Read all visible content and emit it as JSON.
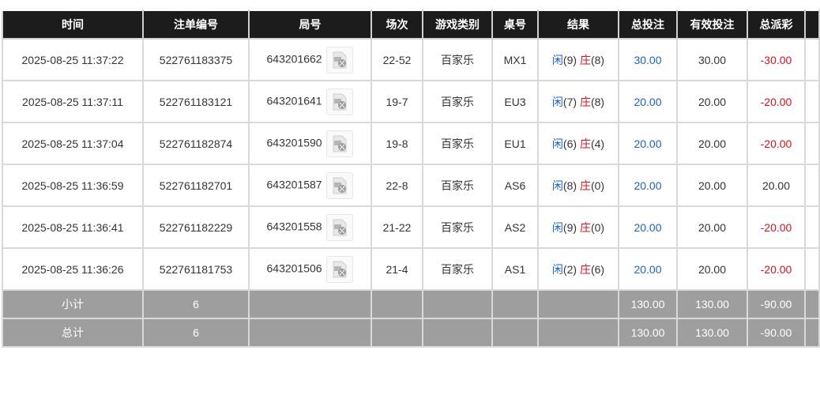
{
  "headers": [
    "时间",
    "注单编号",
    "局号",
    "场次",
    "游戏类别",
    "桌号",
    "结果",
    "总投注",
    "有效投注",
    "总派彩",
    ""
  ],
  "rows": [
    {
      "time": "2025-08-25 11:37:22",
      "bet_id": "522761183375",
      "round": "643201662",
      "session": "22-52",
      "game": "百家乐",
      "table": "MX1",
      "player": "闲",
      "player_score": "(9)",
      "banker": "庄",
      "banker_score": "(8)",
      "total_bet": "30.00",
      "valid_bet": "30.00",
      "payout": "-30.00",
      "payout_negative": true
    },
    {
      "time": "2025-08-25 11:37:11",
      "bet_id": "522761183121",
      "round": "643201641",
      "session": "19-7",
      "game": "百家乐",
      "table": "EU3",
      "player": "闲",
      "player_score": "(7)",
      "banker": "庄",
      "banker_score": "(8)",
      "total_bet": "20.00",
      "valid_bet": "20.00",
      "payout": "-20.00",
      "payout_negative": true
    },
    {
      "time": "2025-08-25 11:37:04",
      "bet_id": "522761182874",
      "round": "643201590",
      "session": "19-8",
      "game": "百家乐",
      "table": "EU1",
      "player": "闲",
      "player_score": "(6)",
      "banker": "庄",
      "banker_score": "(4)",
      "total_bet": "20.00",
      "valid_bet": "20.00",
      "payout": "-20.00",
      "payout_negative": true
    },
    {
      "time": "2025-08-25 11:36:59",
      "bet_id": "522761182701",
      "round": "643201587",
      "session": "22-8",
      "game": "百家乐",
      "table": "AS6",
      "player": "闲",
      "player_score": "(8)",
      "banker": "庄",
      "banker_score": "(0)",
      "total_bet": "20.00",
      "valid_bet": "20.00",
      "payout": "20.00",
      "payout_negative": false
    },
    {
      "time": "2025-08-25 11:36:41",
      "bet_id": "522761182229",
      "round": "643201558",
      "session": "21-22",
      "game": "百家乐",
      "table": "AS2",
      "player": "闲",
      "player_score": "(9)",
      "banker": "庄",
      "banker_score": "(0)",
      "total_bet": "20.00",
      "valid_bet": "20.00",
      "payout": "-20.00",
      "payout_negative": true
    },
    {
      "time": "2025-08-25 11:36:26",
      "bet_id": "522761181753",
      "round": "643201506",
      "session": "21-4",
      "game": "百家乐",
      "table": "AS1",
      "player": "闲",
      "player_score": "(2)",
      "banker": "庄",
      "banker_score": "(6)",
      "total_bet": "20.00",
      "valid_bet": "20.00",
      "payout": "-20.00",
      "payout_negative": true
    }
  ],
  "subtotal": {
    "label": "小计",
    "count": "6",
    "total_bet": "130.00",
    "valid_bet": "130.00",
    "payout": "-90.00"
  },
  "grand_total": {
    "label": "总计",
    "count": "6",
    "total_bet": "130.00",
    "valid_bet": "130.00",
    "payout": "-90.00"
  },
  "colors": {
    "header_bg": "#1c1c1c",
    "summary_bg": "#9e9e9e",
    "player": "#1a5fd6",
    "banker": "#e0101a",
    "negative": "#e0101a"
  },
  "icons": {
    "replay": "video-file-icon"
  }
}
